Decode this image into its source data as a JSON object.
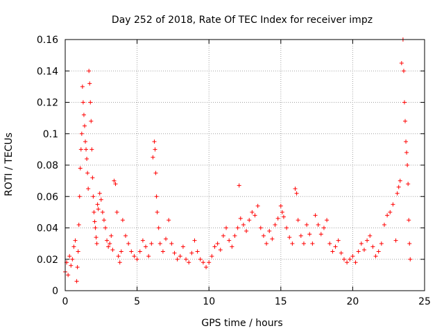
{
  "chart_data": {
    "type": "scatter",
    "title": "Day 252 of 2018, Rate Of TEC Index for receiver impz",
    "xlabel": "GPS time / hours",
    "ylabel": "ROTI / TECUs",
    "xlim": [
      0,
      25
    ],
    "ylim": [
      0,
      0.16
    ],
    "xticks": [
      "0",
      "5",
      "10",
      "15",
      "20",
      "25"
    ],
    "yticks": [
      "0",
      "0.02",
      "0.04",
      "0.06",
      "0.08",
      "0.1",
      "0.12",
      "0.14",
      "0.16"
    ],
    "grid": true,
    "marker": "+",
    "color": "#ff0000",
    "series": [
      {
        "name": "ROTI",
        "points": [
          [
            0.0,
            0.012
          ],
          [
            0.1,
            0.018
          ],
          [
            0.2,
            0.01
          ],
          [
            0.3,
            0.022
          ],
          [
            0.4,
            0.016
          ],
          [
            0.5,
            0.02
          ],
          [
            0.6,
            0.028
          ],
          [
            0.7,
            0.032
          ],
          [
            0.8,
            0.006
          ],
          [
            0.85,
            0.015
          ],
          [
            0.9,
            0.025
          ],
          [
            0.95,
            0.042
          ],
          [
            1.0,
            0.06
          ],
          [
            1.05,
            0.078
          ],
          [
            1.1,
            0.09
          ],
          [
            1.15,
            0.1
          ],
          [
            1.2,
            0.13
          ],
          [
            1.25,
            0.12
          ],
          [
            1.3,
            0.112
          ],
          [
            1.35,
            0.105
          ],
          [
            1.4,
            0.095
          ],
          [
            1.45,
            0.09
          ],
          [
            1.5,
            0.084
          ],
          [
            1.55,
            0.075
          ],
          [
            1.6,
            0.065
          ],
          [
            1.65,
            0.14
          ],
          [
            1.7,
            0.132
          ],
          [
            1.75,
            0.12
          ],
          [
            1.8,
            0.108
          ],
          [
            1.85,
            0.09
          ],
          [
            1.9,
            0.072
          ],
          [
            1.95,
            0.06
          ],
          [
            2.0,
            0.05
          ],
          [
            2.05,
            0.044
          ],
          [
            2.1,
            0.04
          ],
          [
            2.15,
            0.034
          ],
          [
            2.2,
            0.03
          ],
          [
            2.25,
            0.055
          ],
          [
            2.3,
            0.052
          ],
          [
            2.4,
            0.062
          ],
          [
            2.5,
            0.058
          ],
          [
            2.6,
            0.05
          ],
          [
            2.7,
            0.045
          ],
          [
            2.8,
            0.04
          ],
          [
            2.9,
            0.032
          ],
          [
            3.0,
            0.028
          ],
          [
            3.1,
            0.03
          ],
          [
            3.2,
            0.035
          ],
          [
            3.3,
            0.026
          ],
          [
            3.4,
            0.07
          ],
          [
            3.5,
            0.068
          ],
          [
            3.6,
            0.05
          ],
          [
            3.7,
            0.022
          ],
          [
            3.8,
            0.018
          ],
          [
            3.9,
            0.025
          ],
          [
            4.0,
            0.045
          ],
          [
            4.2,
            0.035
          ],
          [
            4.4,
            0.03
          ],
          [
            4.6,
            0.025
          ],
          [
            4.8,
            0.022
          ],
          [
            5.0,
            0.02
          ],
          [
            5.2,
            0.025
          ],
          [
            5.4,
            0.032
          ],
          [
            5.6,
            0.028
          ],
          [
            5.8,
            0.022
          ],
          [
            6.0,
            0.03
          ],
          [
            6.1,
            0.085
          ],
          [
            6.2,
            0.095
          ],
          [
            6.25,
            0.09
          ],
          [
            6.3,
            0.075
          ],
          [
            6.35,
            0.06
          ],
          [
            6.4,
            0.05
          ],
          [
            6.5,
            0.04
          ],
          [
            6.6,
            0.03
          ],
          [
            6.8,
            0.025
          ],
          [
            7.0,
            0.033
          ],
          [
            7.2,
            0.045
          ],
          [
            7.4,
            0.03
          ],
          [
            7.6,
            0.024
          ],
          [
            7.8,
            0.02
          ],
          [
            8.0,
            0.022
          ],
          [
            8.2,
            0.028
          ],
          [
            8.4,
            0.02
          ],
          [
            8.6,
            0.018
          ],
          [
            8.8,
            0.024
          ],
          [
            9.0,
            0.032
          ],
          [
            9.2,
            0.025
          ],
          [
            9.4,
            0.02
          ],
          [
            9.6,
            0.018
          ],
          [
            9.8,
            0.015
          ],
          [
            10.0,
            0.018
          ],
          [
            10.2,
            0.022
          ],
          [
            10.4,
            0.028
          ],
          [
            10.6,
            0.03
          ],
          [
            10.8,
            0.026
          ],
          [
            11.0,
            0.035
          ],
          [
            11.2,
            0.04
          ],
          [
            11.4,
            0.032
          ],
          [
            11.6,
            0.028
          ],
          [
            11.8,
            0.035
          ],
          [
            12.0,
            0.04
          ],
          [
            12.1,
            0.067
          ],
          [
            12.2,
            0.046
          ],
          [
            12.4,
            0.042
          ],
          [
            12.6,
            0.038
          ],
          [
            12.8,
            0.045
          ],
          [
            13.0,
            0.05
          ],
          [
            13.2,
            0.048
          ],
          [
            13.4,
            0.054
          ],
          [
            13.6,
            0.04
          ],
          [
            13.8,
            0.035
          ],
          [
            14.0,
            0.03
          ],
          [
            14.2,
            0.038
          ],
          [
            14.4,
            0.033
          ],
          [
            14.6,
            0.042
          ],
          [
            14.8,
            0.046
          ],
          [
            15.0,
            0.054
          ],
          [
            15.1,
            0.05
          ],
          [
            15.2,
            0.047
          ],
          [
            15.4,
            0.04
          ],
          [
            15.6,
            0.034
          ],
          [
            15.8,
            0.03
          ],
          [
            16.0,
            0.065
          ],
          [
            16.1,
            0.062
          ],
          [
            16.2,
            0.045
          ],
          [
            16.4,
            0.035
          ],
          [
            16.6,
            0.03
          ],
          [
            16.8,
            0.042
          ],
          [
            17.0,
            0.036
          ],
          [
            17.2,
            0.03
          ],
          [
            17.4,
            0.048
          ],
          [
            17.6,
            0.042
          ],
          [
            17.8,
            0.036
          ],
          [
            18.0,
            0.04
          ],
          [
            18.2,
            0.045
          ],
          [
            18.4,
            0.03
          ],
          [
            18.6,
            0.025
          ],
          [
            18.8,
            0.028
          ],
          [
            19.0,
            0.032
          ],
          [
            19.2,
            0.024
          ],
          [
            19.4,
            0.02
          ],
          [
            19.6,
            0.018
          ],
          [
            19.8,
            0.02
          ],
          [
            20.0,
            0.022
          ],
          [
            20.2,
            0.018
          ],
          [
            20.4,
            0.025
          ],
          [
            20.6,
            0.03
          ],
          [
            20.8,
            0.026
          ],
          [
            21.0,
            0.032
          ],
          [
            21.2,
            0.035
          ],
          [
            21.4,
            0.028
          ],
          [
            21.6,
            0.022
          ],
          [
            21.8,
            0.025
          ],
          [
            22.0,
            0.03
          ],
          [
            22.2,
            0.042
          ],
          [
            22.4,
            0.048
          ],
          [
            22.6,
            0.05
          ],
          [
            22.8,
            0.055
          ],
          [
            23.0,
            0.032
          ],
          [
            23.1,
            0.062
          ],
          [
            23.2,
            0.066
          ],
          [
            23.3,
            0.07
          ],
          [
            23.4,
            0.145
          ],
          [
            23.5,
            0.16
          ],
          [
            23.55,
            0.14
          ],
          [
            23.6,
            0.12
          ],
          [
            23.65,
            0.108
          ],
          [
            23.7,
            0.095
          ],
          [
            23.75,
            0.088
          ],
          [
            23.8,
            0.08
          ],
          [
            23.85,
            0.068
          ],
          [
            23.9,
            0.045
          ],
          [
            23.95,
            0.03
          ],
          [
            24.0,
            0.02
          ]
        ]
      }
    ]
  }
}
